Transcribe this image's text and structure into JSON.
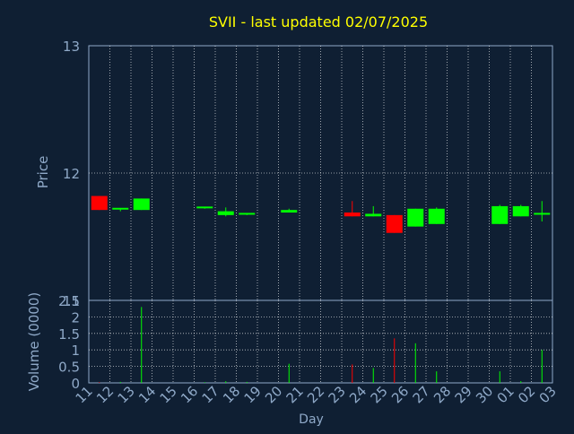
{
  "chart_data": [
    {
      "type": "candlestick",
      "title": "SVII - last updated 02/07/2025",
      "ylabel": "Price",
      "ylim": [
        11,
        13
      ],
      "yticks": [
        "11",
        "12",
        "13"
      ],
      "grid": true,
      "colors": {
        "up": "#00ff00",
        "down": "#ff0000",
        "title": "#ffff00",
        "axis_text": "#8fa9c8",
        "background": "#0f1f33",
        "grid": "#ffffff"
      },
      "categories": [
        "11",
        "12",
        "13",
        "14",
        "15",
        "16",
        "17",
        "18",
        "19",
        "20",
        "21",
        "22",
        "23",
        "24",
        "25",
        "26",
        "27",
        "28",
        "29",
        "30",
        "01",
        "02",
        "03"
      ],
      "candles": [
        {
          "day": "11",
          "open": 11.82,
          "high": 11.82,
          "low": 11.71,
          "close": 11.71,
          "direction": "down"
        },
        {
          "day": "12",
          "open": 11.71,
          "high": 11.72,
          "low": 11.7,
          "close": 11.72,
          "direction": "up"
        },
        {
          "day": "13",
          "open": 11.71,
          "high": 11.8,
          "low": 11.71,
          "close": 11.8,
          "direction": "up"
        },
        {
          "day": "16",
          "open": 11.72,
          "high": 11.73,
          "low": 11.72,
          "close": 11.73,
          "direction": "up"
        },
        {
          "day": "17",
          "open": 11.67,
          "high": 11.73,
          "low": 11.66,
          "close": 11.7,
          "direction": "up"
        },
        {
          "day": "18",
          "open": 11.67,
          "high": 11.68,
          "low": 11.67,
          "close": 11.68,
          "direction": "up"
        },
        {
          "day": "20",
          "open": 11.69,
          "high": 11.72,
          "low": 11.69,
          "close": 11.71,
          "direction": "up"
        },
        {
          "day": "23",
          "open": 11.69,
          "high": 11.78,
          "low": 11.66,
          "close": 11.66,
          "direction": "down"
        },
        {
          "day": "24",
          "open": 11.66,
          "high": 11.74,
          "low": 11.66,
          "close": 11.68,
          "direction": "up"
        },
        {
          "day": "25",
          "open": 11.67,
          "high": 11.67,
          "low": 11.53,
          "close": 11.53,
          "direction": "down"
        },
        {
          "day": "26",
          "open": 11.58,
          "high": 11.72,
          "low": 11.58,
          "close": 11.72,
          "direction": "up"
        },
        {
          "day": "27",
          "open": 11.6,
          "high": 11.73,
          "low": 11.6,
          "close": 11.72,
          "direction": "up"
        },
        {
          "day": "30",
          "open": 11.6,
          "high": 11.75,
          "low": 11.6,
          "close": 11.74,
          "direction": "up"
        },
        {
          "day": "01",
          "open": 11.66,
          "high": 11.75,
          "low": 11.66,
          "close": 11.74,
          "direction": "up"
        },
        {
          "day": "02",
          "open": 11.67,
          "high": 11.78,
          "low": 11.62,
          "close": 11.68,
          "direction": "up"
        }
      ]
    },
    {
      "type": "bar",
      "xlabel": "Day",
      "ylabel": "Volume (0000)",
      "ylim": [
        0,
        2.5
      ],
      "yticks": [
        "0",
        "0.5",
        "1",
        "1.5",
        "2",
        "2.5"
      ],
      "grid": true,
      "categories": [
        "11",
        "12",
        "13",
        "14",
        "15",
        "16",
        "17",
        "18",
        "19",
        "20",
        "21",
        "22",
        "23",
        "24",
        "25",
        "26",
        "27",
        "28",
        "29",
        "30",
        "01",
        "02",
        "03"
      ],
      "bars": [
        {
          "day": "11",
          "value": 0.02,
          "color": "#ff0000"
        },
        {
          "day": "12",
          "value": 0.03,
          "color": "#00ff00"
        },
        {
          "day": "13",
          "value": 2.3,
          "color": "#00ff00"
        },
        {
          "day": "16",
          "value": 0.02,
          "color": "#00ff00"
        },
        {
          "day": "17",
          "value": 0.05,
          "color": "#00ff00"
        },
        {
          "day": "18",
          "value": 0.03,
          "color": "#00ff00"
        },
        {
          "day": "20",
          "value": 0.58,
          "color": "#00ff00"
        },
        {
          "day": "23",
          "value": 0.56,
          "color": "#ff0000"
        },
        {
          "day": "24",
          "value": 0.45,
          "color": "#00ff00"
        },
        {
          "day": "25",
          "value": 1.35,
          "color": "#ff0000"
        },
        {
          "day": "26",
          "value": 1.2,
          "color": "#00ff00"
        },
        {
          "day": "27",
          "value": 0.35,
          "color": "#00ff00"
        },
        {
          "day": "30",
          "value": 0.35,
          "color": "#00ff00"
        },
        {
          "day": "01",
          "value": 0.05,
          "color": "#00ff00"
        },
        {
          "day": "02",
          "value": 1.0,
          "color": "#00ff00"
        }
      ]
    }
  ]
}
